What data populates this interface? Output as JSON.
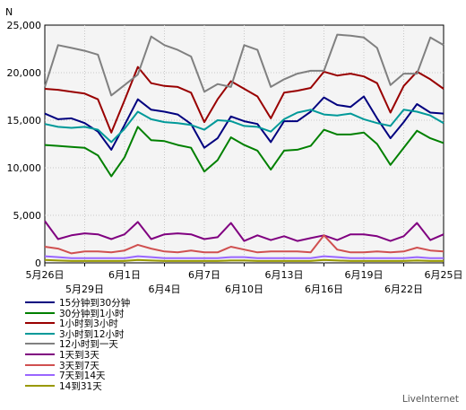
{
  "chart_data": {
    "type": "line",
    "ylabel": "N",
    "ylim": [
      0,
      25000
    ],
    "yticks": [
      "0",
      "5,000",
      "10,000",
      "15,000",
      "20,000",
      "25,000"
    ],
    "x_tick_labels_row1": [
      "5月26日",
      "6月1日",
      "6月7日",
      "6月13日",
      "6月19日",
      "6月25日"
    ],
    "x_tick_labels_row2": [
      "5月29日",
      "6月4日",
      "6月10日",
      "6月16日",
      "6月22日"
    ],
    "x_count": 31,
    "grid": true,
    "series": [
      {
        "name": "15分钟到30分钟",
        "color": "#00007f",
        "values": [
          15700,
          15100,
          15200,
          14700,
          13800,
          11900,
          14500,
          17200,
          16100,
          15900,
          15600,
          14600,
          12100,
          13100,
          15400,
          14900,
          14600,
          12700,
          14900,
          14900,
          15900,
          17400,
          16600,
          16400,
          17500,
          15200,
          13100,
          14800,
          16700,
          15800,
          15700
        ]
      },
      {
        "name": "30分钟到1小时",
        "color": "#008000",
        "values": [
          12400,
          12300,
          12200,
          12100,
          11300,
          9100,
          11100,
          14300,
          12900,
          12800,
          12400,
          12100,
          9600,
          10800,
          13200,
          12400,
          11800,
          9800,
          11800,
          11900,
          12300,
          14000,
          13500,
          13500,
          13700,
          12500,
          10300,
          12100,
          13900,
          13100,
          12600
        ]
      },
      {
        "name": "1小时到3小时",
        "color": "#990000",
        "values": [
          18300,
          18200,
          18000,
          17800,
          17200,
          13700,
          17100,
          20600,
          18900,
          18600,
          18500,
          17900,
          14800,
          17200,
          19100,
          18300,
          17500,
          15200,
          17900,
          18100,
          18400,
          20100,
          19700,
          19900,
          19600,
          18900,
          15800,
          18600,
          20100,
          19300,
          18300
        ]
      },
      {
        "name": "3小时到12小时",
        "color": "#009999",
        "values": [
          14600,
          14300,
          14200,
          14300,
          14000,
          12700,
          14100,
          15900,
          15100,
          14800,
          14700,
          14500,
          14000,
          15000,
          14900,
          14400,
          14300,
          13800,
          15100,
          15800,
          16100,
          15600,
          15500,
          15700,
          15100,
          14700,
          14400,
          16100,
          15900,
          15500,
          14700
        ]
      },
      {
        "name": "12小时到一天",
        "color": "#808080",
        "values": [
          18500,
          22900,
          22600,
          22300,
          21900,
          17600,
          18700,
          19800,
          23800,
          22900,
          22400,
          21700,
          18000,
          18800,
          18500,
          22900,
          22400,
          18500,
          19300,
          19900,
          20200,
          20200,
          24000,
          23900,
          23700,
          22600,
          18700,
          19900,
          19900,
          23700,
          22900
        ]
      },
      {
        "name": "1天到3天",
        "color": "#800080",
        "values": [
          4400,
          2500,
          2900,
          3100,
          3000,
          2500,
          3000,
          4300,
          2500,
          3000,
          3100,
          3000,
          2500,
          2700,
          4200,
          2300,
          2900,
          2400,
          2800,
          2300,
          2600,
          2900,
          2400,
          3000,
          3000,
          2800,
          2300,
          2800,
          4200,
          2400,
          3000
        ]
      },
      {
        "name": "3天到7天",
        "color": "#d05050",
        "values": [
          1700,
          1500,
          1000,
          1200,
          1200,
          1100,
          1300,
          1900,
          1500,
          1200,
          1100,
          1300,
          1100,
          1100,
          1700,
          1400,
          1100,
          1200,
          1200,
          1200,
          1100,
          2900,
          1400,
          1100,
          1100,
          1200,
          1100,
          1200,
          1600,
          1300,
          1200
        ]
      },
      {
        "name": "7天到14天",
        "color": "#9966ff",
        "values": [
          700,
          600,
          500,
          500,
          500,
          500,
          500,
          700,
          600,
          500,
          500,
          500,
          500,
          500,
          600,
          600,
          500,
          500,
          500,
          500,
          500,
          700,
          600,
          500,
          500,
          500,
          500,
          500,
          600,
          500,
          500
        ]
      },
      {
        "name": "14到31天",
        "color": "#999900",
        "values": [
          300,
          250,
          200,
          200,
          200,
          200,
          200,
          300,
          250,
          200,
          200,
          200,
          200,
          200,
          250,
          250,
          200,
          200,
          200,
          200,
          200,
          300,
          250,
          200,
          200,
          200,
          200,
          200,
          250,
          200,
          200
        ]
      }
    ]
  },
  "legend_labels": [
    "15分钟到30分钟",
    "30分钟到1小时",
    "1小时到3小时",
    "3小时到12小时",
    "12小时到一天",
    "1天到3天",
    "3天到7天",
    "7天到14天",
    "14到31天"
  ],
  "legend_colors": [
    "#00007f",
    "#008000",
    "#990000",
    "#009999",
    "#808080",
    "#800080",
    "#d05050",
    "#9966ff",
    "#999900"
  ],
  "brand": "LiveInternet"
}
